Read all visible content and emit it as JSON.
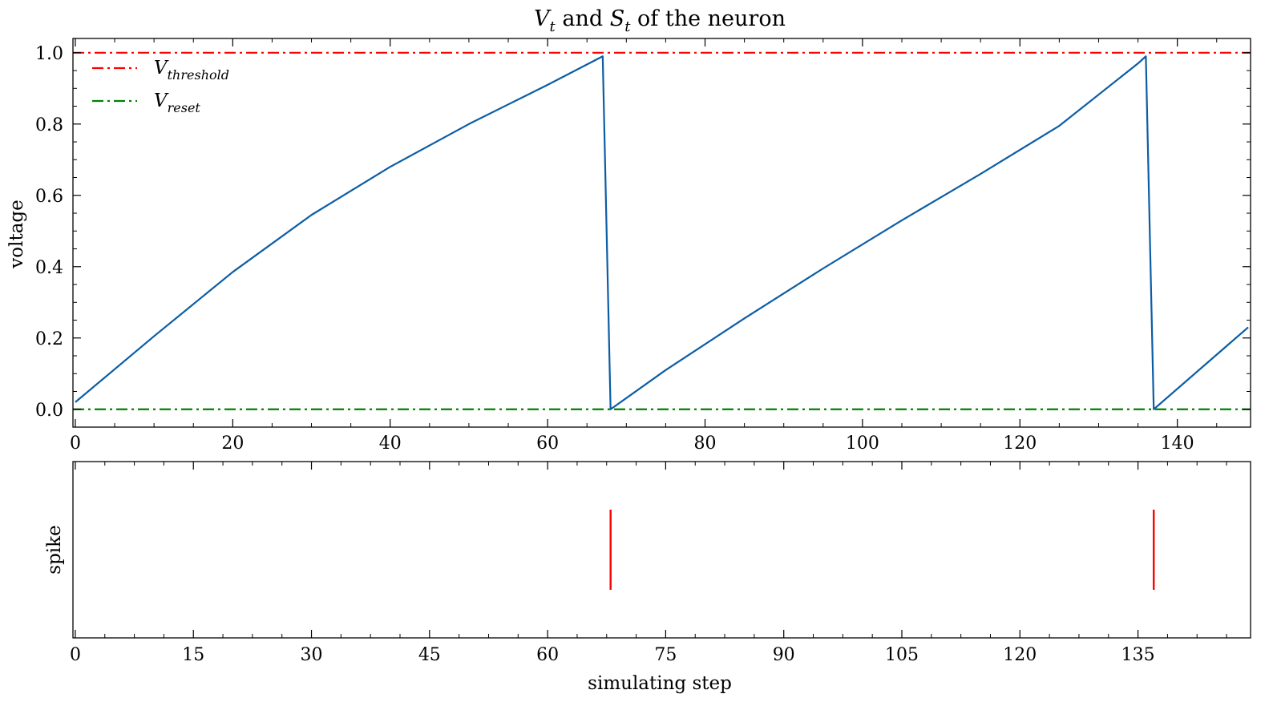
{
  "chart_data": [
    {
      "type": "line",
      "title": {
        "main": "V",
        "main_sub": "t",
        "middle": " and ",
        "second": "S",
        "second_sub": "t",
        "tail": " of the neuron"
      },
      "xlabel": "",
      "ylabel": "voltage",
      "xlim": [
        -0.3,
        149.3
      ],
      "ylim": [
        -0.05,
        1.04
      ],
      "x_ticks": [
        0,
        20,
        40,
        60,
        80,
        100,
        120,
        140
      ],
      "x_tick_labels": [
        "0",
        "20",
        "40",
        "60",
        "80",
        "100",
        "120",
        "140"
      ],
      "y_ticks": [
        0.0,
        0.2,
        0.4,
        0.6,
        0.8,
        1.0
      ],
      "y_tick_labels": [
        "0.0",
        "0.2",
        "0.4",
        "0.6",
        "0.8",
        "1.0"
      ],
      "grid": false,
      "legend_position": "upper-left",
      "series": [
        {
          "points": [
            [
              0,
              0.02
            ],
            [
              10,
              0.205
            ],
            [
              20,
              0.385
            ],
            [
              30,
              0.545
            ],
            [
              40,
              0.68
            ],
            [
              50,
              0.8
            ],
            [
              60,
              0.91
            ],
            [
              67,
              0.99
            ],
            [
              68,
              0.0
            ],
            [
              75,
              0.11
            ],
            [
              85,
              0.255
            ],
            [
              95,
              0.395
            ],
            [
              105,
              0.53
            ],
            [
              115,
              0.66
            ],
            [
              125,
              0.795
            ],
            [
              135,
              0.97
            ],
            [
              136,
              0.99
            ],
            [
              137,
              0.0
            ],
            [
              149,
              0.23
            ]
          ],
          "color": "#0C5DA5"
        }
      ],
      "reference_lines": [
        {
          "name": "V",
          "subscript": "threshold",
          "y": 1.0,
          "color": "#FF0000",
          "style": "dashdot"
        },
        {
          "name": "V",
          "subscript": "reset",
          "y": 0.0,
          "color": "#008000",
          "style": "dashdot"
        }
      ]
    },
    {
      "type": "scatter",
      "xlabel": "simulating step",
      "ylabel": "spike",
      "xlim": [
        -0.3,
        149.3
      ],
      "x_ticks": [
        0,
        15,
        30,
        45,
        60,
        75,
        90,
        105,
        120,
        135
      ],
      "x_tick_labels": [
        "0",
        "15",
        "30",
        "45",
        "60",
        "75",
        "90",
        "105",
        "120",
        "135"
      ],
      "grid": false,
      "series": [
        {
          "x": [
            68,
            137
          ],
          "marker": "vertical-line",
          "color": "#FF0000"
        }
      ]
    }
  ]
}
